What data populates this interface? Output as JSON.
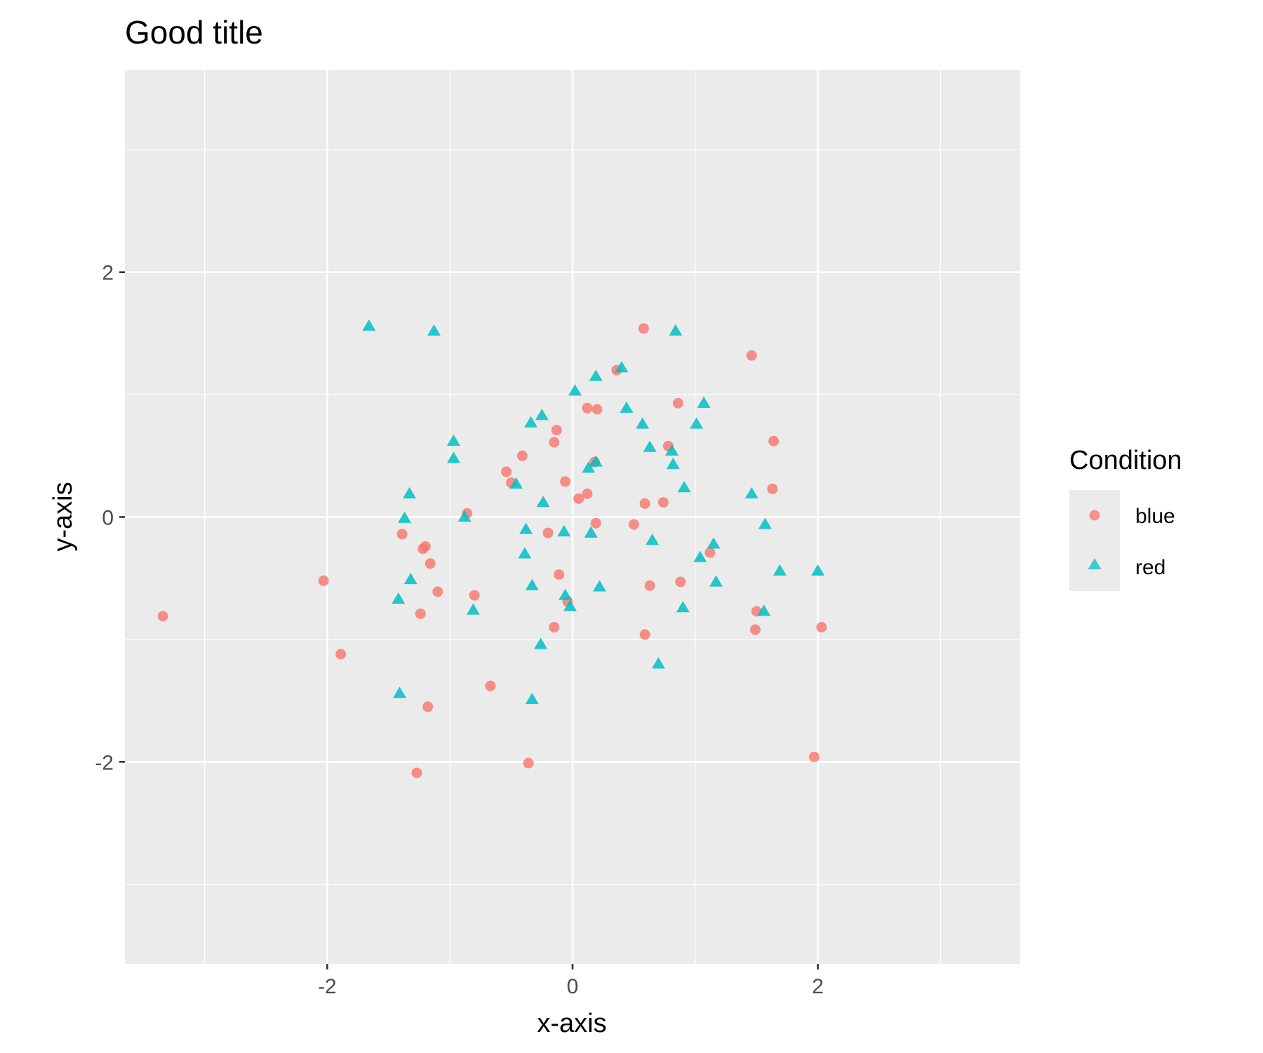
{
  "chart_data": {
    "type": "scatter",
    "title": "Good title",
    "xlabel": "x-axis",
    "ylabel": "y-axis",
    "xlim": [
      -3.65,
      3.65
    ],
    "ylim": [
      -3.65,
      3.65
    ],
    "x_ticks": [
      -2,
      0,
      2
    ],
    "x_tick_labels": [
      "-2",
      "0",
      "2"
    ],
    "y_ticks": [
      -2,
      0,
      2
    ],
    "y_tick_labels": [
      "-2",
      "0",
      "2"
    ],
    "minor_grid": [
      -3,
      -1,
      1,
      3
    ],
    "grid": true,
    "legend": {
      "title": "Condition",
      "placement": "right"
    },
    "series": [
      {
        "name": "blue",
        "shape": "circle",
        "color": "#F8766D",
        "points": [
          [
            -3.34,
            -0.81
          ],
          [
            -2.03,
            -0.52
          ],
          [
            -1.89,
            -1.12
          ],
          [
            -1.39,
            -0.14
          ],
          [
            -1.27,
            -2.09
          ],
          [
            -1.24,
            -0.79
          ],
          [
            -1.22,
            -0.26
          ],
          [
            -1.2,
            -0.24
          ],
          [
            -1.18,
            -1.55
          ],
          [
            -1.16,
            -0.38
          ],
          [
            -1.1,
            -0.61
          ],
          [
            -0.86,
            0.03
          ],
          [
            -0.8,
            -0.64
          ],
          [
            -0.67,
            -1.38
          ],
          [
            -0.54,
            0.37
          ],
          [
            -0.5,
            0.28
          ],
          [
            -0.41,
            0.5
          ],
          [
            -0.36,
            -2.01
          ],
          [
            -0.2,
            -0.13
          ],
          [
            -0.15,
            0.61
          ],
          [
            -0.13,
            0.71
          ],
          [
            -0.15,
            -0.9
          ],
          [
            -0.11,
            -0.47
          ],
          [
            -0.06,
            0.29
          ],
          [
            -0.04,
            -0.69
          ],
          [
            0.05,
            0.15
          ],
          [
            0.12,
            0.89
          ],
          [
            0.12,
            0.19
          ],
          [
            0.18,
            0.45
          ],
          [
            0.19,
            -0.05
          ],
          [
            0.2,
            0.88
          ],
          [
            0.36,
            1.2
          ],
          [
            0.5,
            -0.06
          ],
          [
            0.58,
            1.54
          ],
          [
            0.59,
            0.11
          ],
          [
            0.59,
            -0.96
          ],
          [
            0.63,
            -0.56
          ],
          [
            0.74,
            0.12
          ],
          [
            0.78,
            0.58
          ],
          [
            0.86,
            0.93
          ],
          [
            0.88,
            -0.53
          ],
          [
            1.12,
            -0.29
          ],
          [
            1.46,
            1.32
          ],
          [
            1.49,
            -0.92
          ],
          [
            1.5,
            -0.77
          ],
          [
            1.63,
            0.23
          ],
          [
            1.64,
            0.62
          ],
          [
            1.97,
            -1.96
          ],
          [
            2.03,
            -0.9
          ]
        ]
      },
      {
        "name": "red",
        "shape": "triangle",
        "color": "#00BFC4",
        "points": [
          [
            -1.66,
            1.56
          ],
          [
            -1.13,
            1.52
          ],
          [
            -1.42,
            -0.67
          ],
          [
            -1.41,
            -1.44
          ],
          [
            -1.37,
            -0.01
          ],
          [
            -1.33,
            0.19
          ],
          [
            -1.32,
            -0.51
          ],
          [
            -0.97,
            0.62
          ],
          [
            -0.97,
            0.48
          ],
          [
            -0.88,
            0.0
          ],
          [
            -0.81,
            -0.76
          ],
          [
            -0.46,
            0.27
          ],
          [
            -0.39,
            -0.3
          ],
          [
            -0.38,
            -0.1
          ],
          [
            -0.34,
            0.77
          ],
          [
            -0.33,
            -0.56
          ],
          [
            -0.33,
            -1.49
          ],
          [
            -0.25,
            0.83
          ],
          [
            -0.24,
            0.12
          ],
          [
            -0.26,
            -1.04
          ],
          [
            -0.07,
            -0.12
          ],
          [
            -0.06,
            -0.64
          ],
          [
            -0.02,
            -0.73
          ],
          [
            0.02,
            1.03
          ],
          [
            0.13,
            0.4
          ],
          [
            0.15,
            -0.13
          ],
          [
            0.19,
            1.15
          ],
          [
            0.19,
            0.45
          ],
          [
            0.22,
            -0.57
          ],
          [
            0.4,
            1.22
          ],
          [
            0.44,
            0.89
          ],
          [
            0.57,
            0.76
          ],
          [
            0.63,
            0.57
          ],
          [
            0.65,
            -0.19
          ],
          [
            0.7,
            -1.2
          ],
          [
            0.81,
            0.54
          ],
          [
            0.82,
            0.43
          ],
          [
            0.84,
            1.52
          ],
          [
            0.9,
            -0.74
          ],
          [
            0.91,
            0.24
          ],
          [
            1.01,
            0.76
          ],
          [
            1.04,
            -0.33
          ],
          [
            1.07,
            0.93
          ],
          [
            1.15,
            -0.22
          ],
          [
            1.17,
            -0.53
          ],
          [
            1.46,
            0.19
          ],
          [
            1.56,
            -0.77
          ],
          [
            1.57,
            -0.06
          ],
          [
            1.69,
            -0.44
          ],
          [
            2.0,
            -0.44
          ]
        ]
      }
    ]
  }
}
